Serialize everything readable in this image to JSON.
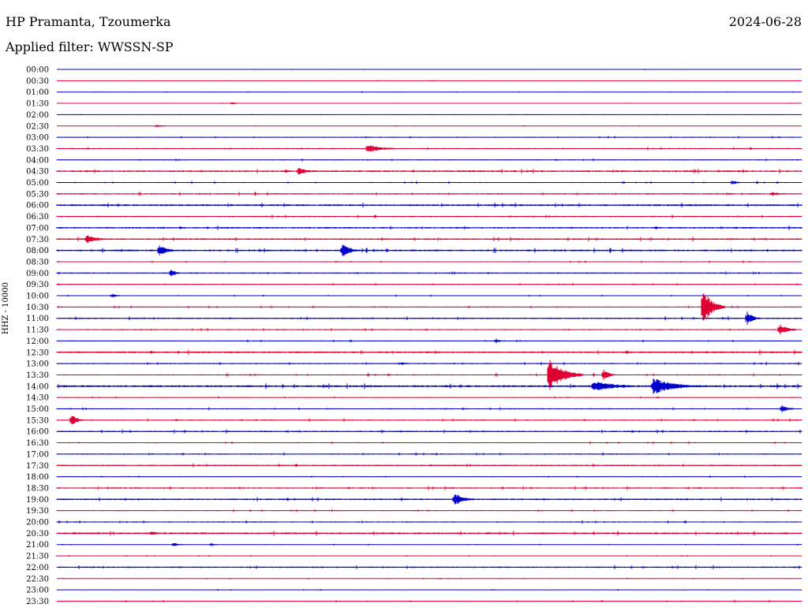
{
  "header": {
    "station": "HP Pramanta, Tzoumerka",
    "filter": "Applied filter: WWSSN-SP",
    "date": "2024-06-28"
  },
  "axis": {
    "channel_label": "HHZ - 10000"
  },
  "colors": {
    "even": "#0000cc",
    "odd": "#dd0033",
    "text": "#000000"
  },
  "chart_data": {
    "type": "line",
    "title": "HP Pramanta, Tzoumerka",
    "subtitle": "Applied filter: WWSSN-SP",
    "ylabel": "HHZ - 10000",
    "row_labels": [
      "00:00",
      "00:30",
      "01:00",
      "01:30",
      "02:00",
      "02:30",
      "03:00",
      "03:30",
      "04:00",
      "04:30",
      "05:00",
      "05:30",
      "06:00",
      "06:30",
      "07:00",
      "07:30",
      "08:00",
      "08:30",
      "09:00",
      "09:30",
      "10:00",
      "10:30",
      "11:00",
      "11:30",
      "12:00",
      "12:30",
      "13:00",
      "13:30",
      "14:00",
      "14:30",
      "15:00",
      "15:30",
      "16:00",
      "16:30",
      "17:00",
      "17:30",
      "18:00",
      "18:30",
      "19:00",
      "19:30",
      "20:00",
      "20:30",
      "21:00",
      "21:30",
      "22:00",
      "22:30",
      "23:00",
      "23:30"
    ],
    "row_duration_minutes": 30,
    "noise_level": [
      0.2,
      0.2,
      0.3,
      0.2,
      0.2,
      0.2,
      0.5,
      0.6,
      0.5,
      0.9,
      0.5,
      0.7,
      0.9,
      0.7,
      0.8,
      0.8,
      0.9,
      0.5,
      0.6,
      0.5,
      0.4,
      0.5,
      0.7,
      0.6,
      0.5,
      0.9,
      0.6,
      0.6,
      1.0,
      0.4,
      0.6,
      0.6,
      0.7,
      0.5,
      0.6,
      0.7,
      0.4,
      0.7,
      0.8,
      0.5,
      0.6,
      0.9,
      0.3,
      0.3,
      0.7,
      0.3,
      0.3,
      0.5
    ],
    "events": [
      {
        "row": "01:30",
        "minute": 7.0,
        "amplitude": 2,
        "duration": 0.6
      },
      {
        "row": "02:30",
        "minute": 4.0,
        "amplitude": 2,
        "duration": 0.6
      },
      {
        "row": "03:30",
        "minute": 12.5,
        "amplitude": 6,
        "duration": 1.5
      },
      {
        "row": "04:30",
        "minute": 9.7,
        "amplitude": 5,
        "duration": 1.0
      },
      {
        "row": "05:00",
        "minute": 27.2,
        "amplitude": 3,
        "duration": 0.5
      },
      {
        "row": "05:30",
        "minute": 28.8,
        "amplitude": 3,
        "duration": 0.8
      },
      {
        "row": "07:30",
        "minute": 1.2,
        "amplitude": 6,
        "duration": 1.0
      },
      {
        "row": "08:00",
        "minute": 4.1,
        "amplitude": 8,
        "duration": 0.8
      },
      {
        "row": "08:00",
        "minute": 11.5,
        "amplitude": 9,
        "duration": 0.8
      },
      {
        "row": "09:00",
        "minute": 4.6,
        "amplitude": 7,
        "duration": 0.3
      },
      {
        "row": "10:00",
        "minute": 2.2,
        "amplitude": 3,
        "duration": 0.6
      },
      {
        "row": "10:30",
        "minute": 26.0,
        "amplitude": 26,
        "duration": 0.9
      },
      {
        "row": "11:00",
        "minute": 27.8,
        "amplitude": 9,
        "duration": 0.6
      },
      {
        "row": "11:30",
        "minute": 29.1,
        "amplitude": 7,
        "duration": 0.9
      },
      {
        "row": "12:00",
        "minute": 17.7,
        "amplitude": 3,
        "duration": 0.3
      },
      {
        "row": "13:00",
        "minute": 13.9,
        "amplitude": 3,
        "duration": 0.3
      },
      {
        "row": "13:30",
        "minute": 19.8,
        "amplitude": 22,
        "duration": 1.4
      },
      {
        "row": "13:30",
        "minute": 22.0,
        "amplitude": 8,
        "duration": 0.5
      },
      {
        "row": "14:00",
        "minute": 21.6,
        "amplitude": 7,
        "duration": 2.5
      },
      {
        "row": "14:00",
        "minute": 24.0,
        "amplitude": 11,
        "duration": 2.2
      },
      {
        "row": "15:00",
        "minute": 29.2,
        "amplitude": 5,
        "duration": 0.6
      },
      {
        "row": "15:30",
        "minute": 0.6,
        "amplitude": 7,
        "duration": 0.6
      },
      {
        "row": "19:00",
        "minute": 16.0,
        "amplitude": 9,
        "duration": 0.9
      },
      {
        "row": "20:30",
        "minute": 3.8,
        "amplitude": 3,
        "duration": 0.6
      },
      {
        "row": "21:00",
        "minute": 4.7,
        "amplitude": 3,
        "duration": 0.5
      },
      {
        "row": "21:00",
        "minute": 6.2,
        "amplitude": 3,
        "duration": 0.3
      }
    ]
  }
}
